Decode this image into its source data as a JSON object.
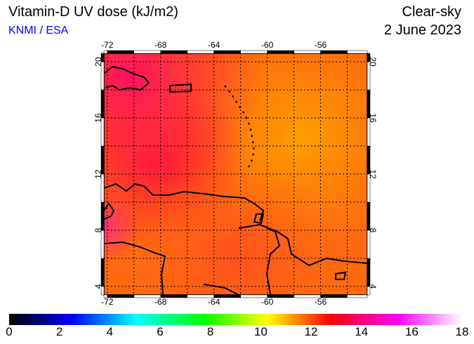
{
  "header": {
    "title": "Vitamin-D UV dose (kJ/m2)",
    "credit": "KNMI / ESA",
    "sky_condition": "Clear-sky",
    "date": "2 June 2023"
  },
  "map": {
    "lon_ticks": [
      "-72",
      "-68",
      "-64",
      "-60",
      "-56"
    ],
    "lat_ticks": [
      "20",
      "16",
      "12",
      "8",
      "4"
    ],
    "lon_range": [
      -72.25,
      -52.5
    ],
    "lat_range": [
      3.4,
      20.6
    ],
    "grid_step_deg": 2
  },
  "colorbar": {
    "labels": [
      "0",
      "2",
      "4",
      "6",
      "8",
      "10",
      "12",
      "14",
      "16",
      "18"
    ],
    "range": [
      0,
      18
    ],
    "colors": [
      "#000000",
      "#0000ff",
      "#00ffff",
      "#00ff00",
      "#ffff00",
      "#ff0000",
      "#ff00ff",
      "#ffffff"
    ]
  }
}
